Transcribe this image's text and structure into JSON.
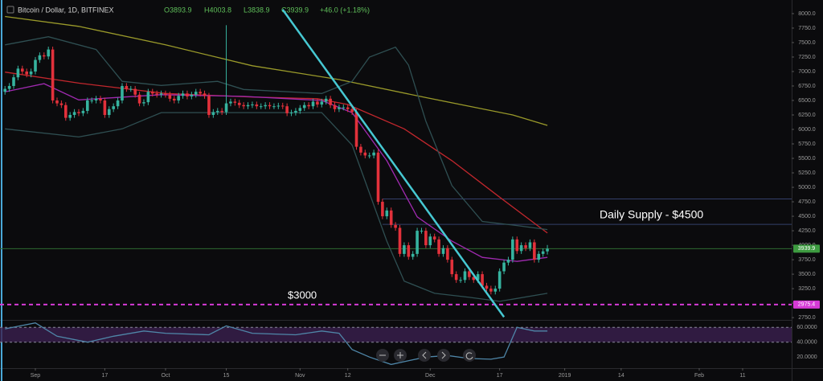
{
  "chart_data": {
    "type": "candlestick",
    "title": "Bitcoin / Dollar, 1D, BITFINEX",
    "ohlc_legend": [
      "O3893.9",
      "H4003.8",
      "L3838.9",
      "C3939.9",
      "+46.0 (+1.18%)"
    ],
    "x": [
      -7,
      -6,
      -5,
      -4,
      -3,
      -2,
      -1,
      0,
      1,
      2,
      3,
      4,
      5,
      6,
      7,
      8,
      9,
      10,
      11,
      12,
      13,
      14,
      15,
      16,
      17,
      18,
      19,
      20,
      21,
      22,
      23,
      24,
      25,
      26,
      27,
      28,
      29,
      30,
      31,
      32,
      33,
      34,
      35,
      36,
      37,
      38,
      39,
      40,
      41,
      42,
      43,
      44,
      45,
      46,
      47,
      48,
      49,
      50,
      51,
      52,
      53,
      54,
      55,
      56,
      57,
      58,
      59,
      60,
      61,
      62,
      63,
      64,
      65,
      66,
      67,
      68,
      69,
      70,
      71,
      72,
      73,
      74,
      75,
      76,
      77,
      78,
      79,
      80,
      81,
      82,
      83,
      84,
      85,
      86,
      87,
      88,
      89,
      90,
      91,
      92,
      93,
      94,
      95,
      96,
      97,
      98,
      99,
      100,
      101,
      102,
      103,
      104,
      105,
      106,
      107,
      108,
      109,
      110,
      111,
      112,
      113,
      114,
      115,
      116,
      117,
      118
    ],
    "open": [
      6650,
      6700,
      6750,
      6900,
      7050,
      7000,
      6950,
      7000,
      7200,
      7280,
      7260,
      7380,
      6500,
      6450,
      6420,
      6200,
      6250,
      6300,
      6280,
      6320,
      6500,
      6500,
      6530,
      6500,
      6250,
      6350,
      6400,
      6500,
      6750,
      6700,
      6700,
      6600,
      6450,
      6470,
      6650,
      6620,
      6600,
      6620,
      6600,
      6530,
      6500,
      6580,
      6620,
      6570,
      6600,
      6650,
      6620,
      6580,
      6250,
      6300,
      6320,
      6300,
      6450,
      6480,
      6460,
      6420,
      6400,
      6420,
      6430,
      6400,
      6400,
      6420,
      6400,
      6400,
      6410,
      6400,
      6280,
      6290,
      6320,
      6370,
      6420,
      6400,
      6480,
      6430,
      6480,
      6530,
      6420,
      6350,
      6380,
      6380,
      6350,
      6300,
      5700,
      5600,
      5550,
      5550,
      5600,
      4750,
      4500,
      4600,
      4350,
      4300,
      3850,
      4000,
      3800,
      3850,
      4250,
      4250,
      4000,
      4150,
      4100,
      3850,
      3950,
      3750,
      3500,
      3400,
      3400,
      3550,
      3450,
      3400,
      3500,
      3300,
      3250,
      3200,
      3250,
      3550,
      3700,
      3750,
      4100,
      3900,
      4000,
      3950,
      4050,
      3750,
      3850,
      3893.9
    ],
    "high": [
      6750,
      6800,
      6950,
      7100,
      7100,
      7050,
      7050,
      7250,
      7330,
      7330,
      7430,
      7430,
      6550,
      6500,
      6470,
      6300,
      6350,
      6350,
      6370,
      6550,
      6550,
      6580,
      6580,
      6550,
      6400,
      6450,
      6550,
      6800,
      6800,
      6750,
      6750,
      6650,
      6520,
      6700,
      6700,
      6670,
      6670,
      6670,
      6650,
      6580,
      6630,
      6670,
      6670,
      6650,
      6700,
      6700,
      6670,
      6630,
      6350,
      6370,
      6370,
      7800,
      6530,
      6530,
      6510,
      6470,
      6470,
      6480,
      6480,
      6450,
      6470,
      6470,
      6450,
      6460,
      6460,
      6450,
      6340,
      6370,
      6420,
      6470,
      6470,
      6530,
      6530,
      6530,
      6580,
      6580,
      6470,
      6430,
      6430,
      6430,
      6400,
      6350,
      5750,
      5650,
      5600,
      5650,
      5650,
      4800,
      4650,
      4650,
      4400,
      4350,
      4050,
      4050,
      3900,
      4300,
      4300,
      4300,
      4200,
      4200,
      4150,
      4000,
      4000,
      3800,
      3550,
      3450,
      3600,
      3600,
      3500,
      3550,
      3550,
      3350,
      3300,
      3300,
      3600,
      3750,
      3800,
      4150,
      4150,
      4050,
      4050,
      4100,
      4100,
      3900,
      3943.9,
      4003.8
    ],
    "low": [
      6600,
      6650,
      6700,
      6850,
      6950,
      6900,
      6900,
      6950,
      7150,
      7210,
      7210,
      6450,
      6400,
      6370,
      6150,
      6150,
      6200,
      6230,
      6230,
      6270,
      6450,
      6450,
      6450,
      6200,
      6200,
      6300,
      6350,
      6450,
      6650,
      6650,
      6550,
      6400,
      6400,
      6420,
      6570,
      6550,
      6550,
      6550,
      6480,
      6450,
      6450,
      6530,
      6520,
      6520,
      6550,
      6570,
      6530,
      6200,
      6200,
      6250,
      6250,
      6250,
      6400,
      6410,
      6370,
      6350,
      6350,
      6370,
      6350,
      6350,
      6350,
      6350,
      6350,
      6350,
      6350,
      6230,
      6230,
      6240,
      6270,
      6320,
      6350,
      6350,
      6380,
      6380,
      6430,
      6370,
      6300,
      6300,
      6330,
      6300,
      6250,
      5650,
      5550,
      5500,
      5500,
      5500,
      4700,
      4450,
      4450,
      4300,
      4250,
      3800,
      3800,
      3750,
      3750,
      3800,
      4200,
      3950,
      3950,
      4050,
      3800,
      3800,
      3700,
      3450,
      3350,
      3350,
      3350,
      3400,
      3350,
      3350,
      3250,
      3200,
      3150,
      3150,
      3200,
      3500,
      3650,
      3700,
      3850,
      3850,
      3900,
      3900,
      3700,
      3700,
      3800,
      3838.9
    ],
    "close": [
      6700,
      6750,
      6900,
      7050,
      7000,
      6950,
      7000,
      7200,
      7280,
      7260,
      7380,
      6500,
      6450,
      6420,
      6200,
      6250,
      6300,
      6280,
      6320,
      6500,
      6500,
      6530,
      6500,
      6250,
      6350,
      6400,
      6500,
      6750,
      6700,
      6700,
      6600,
      6450,
      6470,
      6650,
      6620,
      6600,
      6620,
      6600,
      6530,
      6500,
      6580,
      6620,
      6570,
      6600,
      6650,
      6620,
      6580,
      6250,
      6300,
      6320,
      6300,
      6450,
      6480,
      6460,
      6420,
      6400,
      6420,
      6430,
      6400,
      6400,
      6420,
      6400,
      6400,
      6410,
      6400,
      6280,
      6290,
      6320,
      6370,
      6420,
      6400,
      6480,
      6430,
      6480,
      6530,
      6420,
      6350,
      6380,
      6380,
      6350,
      6300,
      5700,
      5600,
      5550,
      5550,
      5600,
      4750,
      4500,
      4600,
      4350,
      4300,
      3850,
      4000,
      3800,
      3850,
      4250,
      4250,
      4000,
      4150,
      4100,
      3850,
      3950,
      3750,
      3500,
      3400,
      3400,
      3550,
      3450,
      3400,
      3500,
      3300,
      3250,
      3200,
      3250,
      3550,
      3700,
      3750,
      4100,
      3900,
      4000,
      3950,
      4050,
      3750,
      3850,
      3893.9,
      3939.9
    ],
    "up_color": "#36b39f",
    "down_color": "#e2313b",
    "xlim": [
      -8.15,
      174.3
    ],
    "xticks": [
      {
        "value": 0,
        "label": "Sep"
      },
      {
        "value": 16,
        "label": "17"
      },
      {
        "value": 30,
        "label": "Oct"
      },
      {
        "value": 44,
        "label": "15"
      },
      {
        "value": 61,
        "label": "Nov"
      },
      {
        "value": 72,
        "label": "12"
      },
      {
        "value": 91,
        "label": "Dec"
      },
      {
        "value": 107,
        "label": "17"
      },
      {
        "value": 122,
        "label": "2019"
      },
      {
        "value": 135,
        "label": "14"
      },
      {
        "value": 153,
        "label": "Feb"
      },
      {
        "value": 163,
        "label": "11"
      }
    ],
    "ylim": [
      2710,
      8235
    ],
    "yticks": [
      {
        "value": 8000,
        "label": "8000.0"
      },
      {
        "value": 7750,
        "label": "7750.0"
      },
      {
        "value": 7500,
        "label": "7500.0"
      },
      {
        "value": 7250,
        "label": "7250.0"
      },
      {
        "value": 7000,
        "label": "7000.0"
      },
      {
        "value": 6750,
        "label": "6750.0"
      },
      {
        "value": 6500,
        "label": "6500.0"
      },
      {
        "value": 6250,
        "label": "6250.0"
      },
      {
        "value": 6000,
        "label": "6000.0"
      },
      {
        "value": 5750,
        "label": "5750.0"
      },
      {
        "value": 5500,
        "label": "5500.0"
      },
      {
        "value": 5250,
        "label": "5250.0"
      },
      {
        "value": 5000,
        "label": "5000.0"
      },
      {
        "value": 4750,
        "label": "4750.0"
      },
      {
        "value": 4500,
        "label": "4500.0"
      },
      {
        "value": 4250,
        "label": "4250.0"
      },
      {
        "value": 4000,
        "label": "4000.0"
      },
      {
        "value": 3750,
        "label": "3750.0"
      },
      {
        "value": 3500,
        "label": "3500.0"
      },
      {
        "value": 3250,
        "label": "3250.0"
      },
      {
        "value": 3000,
        "label": "3000.0"
      },
      {
        "value": 2750,
        "label": "2750.0"
      }
    ],
    "grid": false,
    "overlays": [
      {
        "color": "#9a9a2a",
        "x": [
          -7,
          10,
          30,
          50,
          70,
          90,
          110,
          118
        ],
        "values": [
          7950,
          7780,
          7460,
          7100,
          6860,
          6550,
          6250,
          6070
        ]
      },
      {
        "color": "#c2272d",
        "x": [
          -7,
          10,
          30,
          50,
          65,
          72,
          85,
          96,
          107,
          118
        ],
        "values": [
          6990,
          6800,
          6620,
          6560,
          6530,
          6430,
          6010,
          5460,
          4830,
          4210
        ]
      },
      {
        "color": "#a02ab0",
        "x": [
          -7,
          2,
          10,
          29,
          48,
          66,
          73,
          81,
          88,
          96,
          103,
          111,
          118
        ],
        "values": [
          6650,
          6790,
          6510,
          6600,
          6570,
          6500,
          6290,
          5460,
          4490,
          4070,
          3790,
          3720,
          3790
        ]
      },
      {
        "color": "#2f4f52",
        "x": [
          -7,
          3,
          14,
          20,
          29,
          42,
          48,
          66,
          73,
          77,
          83,
          86,
          90,
          96,
          103,
          111,
          118
        ],
        "values": [
          7460,
          7600,
          7380,
          6830,
          6760,
          6830,
          6690,
          6620,
          6830,
          7250,
          7420,
          7110,
          6140,
          5030,
          4410,
          4340,
          4270
        ]
      },
      {
        "color": "#2f4f52",
        "x": [
          -7,
          10,
          20,
          29,
          48,
          66,
          73,
          81,
          85,
          92,
          100,
          107,
          118
        ],
        "values": [
          6010,
          5870,
          6010,
          6290,
          6290,
          6290,
          5730,
          4070,
          3380,
          3170,
          3100,
          3030,
          3170
        ]
      }
    ],
    "trendline": {
      "color": "#46c8d2",
      "x": [
        57,
        108
      ],
      "values": [
        8070,
        2760
      ]
    },
    "levels": [
      {
        "value": 4800,
        "start": 80,
        "color": "#34406a",
        "dash": false
      },
      {
        "value": 4360,
        "start": 80,
        "color": "#34406a",
        "dash": false
      },
      {
        "value": 3939.9,
        "start": -8.15,
        "color": "#2e6b30",
        "dash": false
      },
      {
        "value": 2975.4,
        "start": -8.15,
        "color": "#d63ad6",
        "dash": true
      }
    ],
    "price_tags": [
      {
        "value": 3939.9,
        "color": "#3d9b40"
      },
      {
        "value": 2975.4,
        "color": "#d63ad6"
      }
    ],
    "annotations": [
      "Daily Supply - $4500",
      "$3000"
    ],
    "indicator": {
      "type": "line",
      "color": "#4f86a8",
      "band_color": "#3a1f4f",
      "ylim": [
        5,
        70
      ],
      "yticks": [
        {
          "value": 60,
          "label": "60.0000"
        },
        {
          "value": 40,
          "label": "40.0000"
        },
        {
          "value": 20,
          "label": "20.0000"
        }
      ],
      "x": [
        -7,
        0,
        5,
        12,
        18,
        25,
        30,
        40,
        44,
        50,
        60,
        66,
        70,
        73,
        77,
        82,
        86,
        90,
        95,
        100,
        105,
        108,
        111,
        115,
        118
      ],
      "values": [
        58,
        66,
        48,
        40,
        48,
        55,
        52,
        50,
        62,
        52,
        50,
        55,
        52,
        30,
        20,
        10,
        15,
        20,
        22,
        18,
        17,
        20,
        60,
        55,
        55
      ]
    }
  }
}
